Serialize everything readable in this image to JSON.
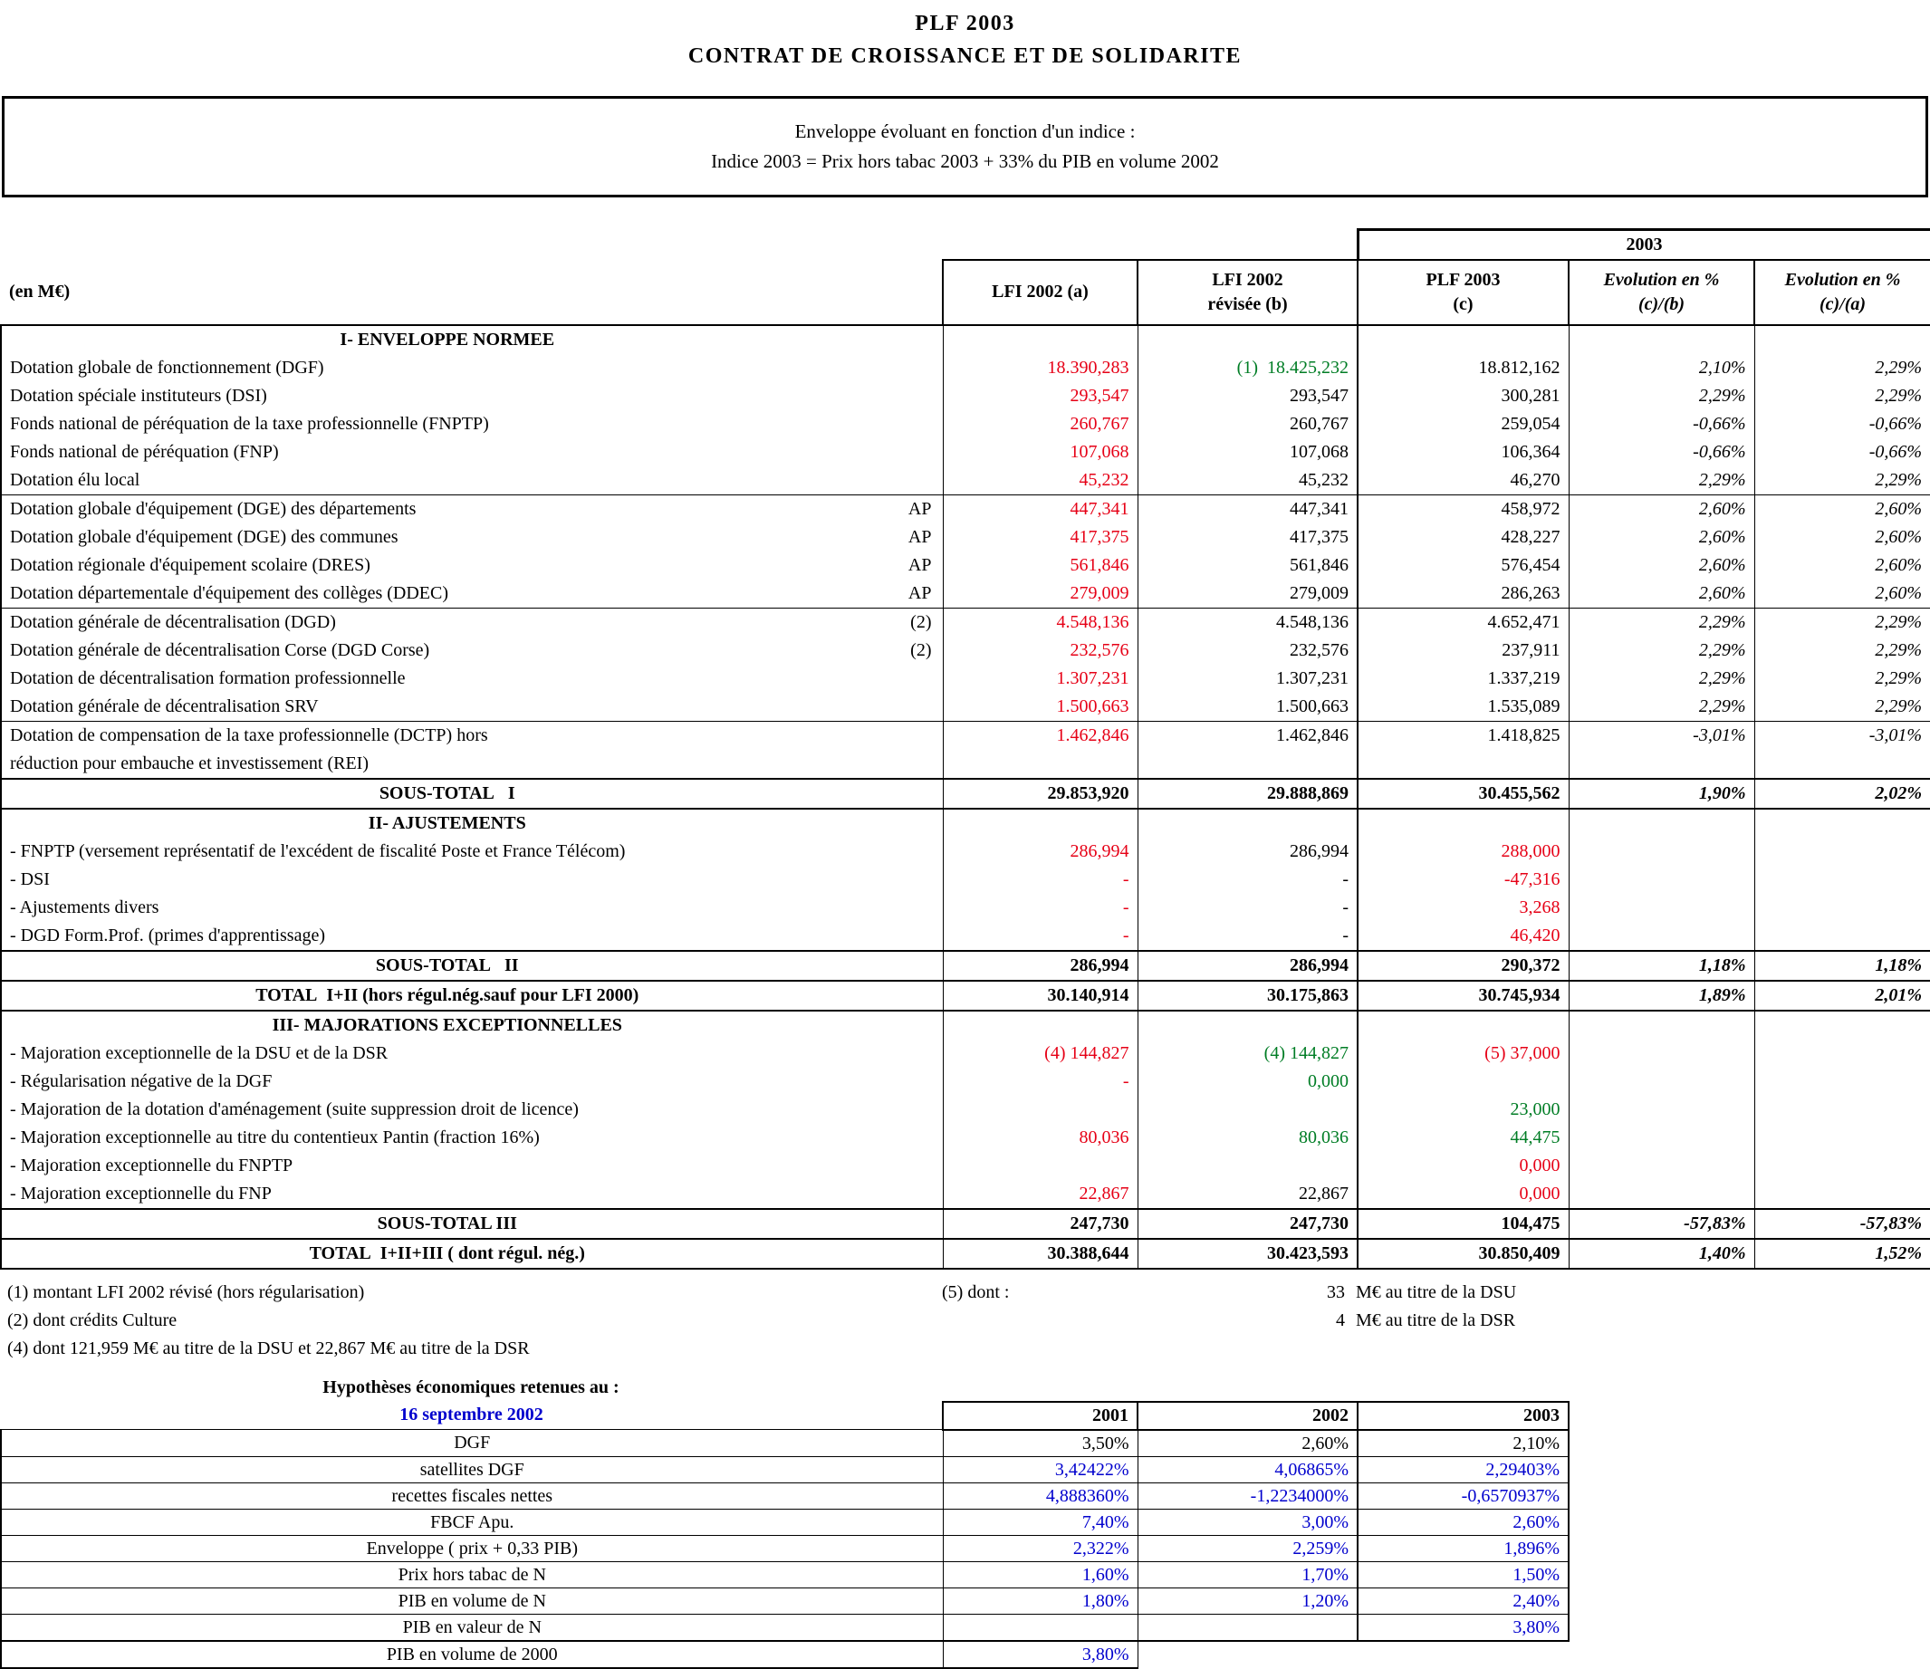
{
  "title": {
    "line1": "PLF 2003",
    "line2": "CONTRAT DE CROISSANCE ET DE SOLIDARITE"
  },
  "notice": {
    "line1": "Enveloppe évoluant en fonction d'un indice :",
    "line2": "Indice 2003 = Prix hors tabac 2003 + 33% du PIB en volume 2002"
  },
  "main_table": {
    "year_span_header": "2003",
    "unit_label": "(en M€)",
    "col_headers": [
      {
        "l1": "LFI 2002 (a)",
        "l2": ""
      },
      {
        "l1": "LFI 2002",
        "l2": "révisée (b)"
      },
      {
        "l1": "PLF 2003",
        "l2": "(c)"
      },
      {
        "l1": "Evolution en %",
        "l2": "(c)/(b)"
      },
      {
        "l1": "Evolution en %",
        "l2": "(c)/(a)"
      }
    ],
    "rows": [
      {
        "t": "sec",
        "label": "I- ENVELOPPE NORMEE"
      },
      {
        "t": "d",
        "label": "Dotation globale de fonctionnement (DGF)",
        "a": "18.390,283",
        "ac": "red",
        "b": "(1)  18.425,232",
        "bc": "green",
        "c": "18.812,162",
        "cb": "2,10%",
        "ca": "2,29%"
      },
      {
        "t": "d",
        "label": "Dotation spéciale instituteurs (DSI)",
        "a": "293,547",
        "ac": "red",
        "b": "293,547",
        "c": "300,281",
        "cb": "2,29%",
        "ca": "2,29%"
      },
      {
        "t": "d",
        "label": "Fonds national de péréquation de la taxe professionnelle (FNPTP)",
        "a": "260,767",
        "ac": "red",
        "b": "260,767",
        "c": "259,054",
        "cb": "-0,66%",
        "ca": "-0,66%"
      },
      {
        "t": "d",
        "label": "Fonds national de péréquation (FNP)",
        "a": "107,068",
        "ac": "red",
        "b": "107,068",
        "c": "106,364",
        "cb": "-0,66%",
        "ca": "-0,66%"
      },
      {
        "t": "d",
        "label": "Dotation élu local",
        "a": "45,232",
        "ac": "red",
        "b": "45,232",
        "c": "46,270",
        "cb": "2,29%",
        "ca": "2,29%"
      },
      {
        "t": "d",
        "bt": 1,
        "label": "Dotation globale d'équipement (DGE) des départements",
        "m": "AP",
        "a": "447,341",
        "ac": "red",
        "b": "447,341",
        "c": "458,972",
        "cb": "2,60%",
        "ca": "2,60%"
      },
      {
        "t": "d",
        "label": "Dotation globale d'équipement (DGE) des communes",
        "m": "AP",
        "a": "417,375",
        "ac": "red",
        "b": "417,375",
        "c": "428,227",
        "cb": "2,60%",
        "ca": "2,60%"
      },
      {
        "t": "d",
        "label": "Dotation régionale d'équipement scolaire (DRES)",
        "m": "AP",
        "a": "561,846",
        "ac": "red",
        "b": "561,846",
        "c": "576,454",
        "cb": "2,60%",
        "ca": "2,60%"
      },
      {
        "t": "d",
        "label": "Dotation départementale d'équipement des collèges (DDEC)",
        "m": "AP",
        "a": "279,009",
        "ac": "red",
        "b": "279,009",
        "c": "286,263",
        "cb": "2,60%",
        "ca": "2,60%"
      },
      {
        "t": "d",
        "bt": 1,
        "label": "Dotation générale de décentralisation (DGD)",
        "m": "(2)",
        "a": "4.548,136",
        "ac": "red",
        "b": "4.548,136",
        "c": "4.652,471",
        "cb": "2,29%",
        "ca": "2,29%"
      },
      {
        "t": "d",
        "label": "Dotation générale de décentralisation Corse (DGD Corse)",
        "m": "(2)",
        "a": "232,576",
        "ac": "red",
        "b": "232,576",
        "c": "237,911",
        "cb": "2,29%",
        "ca": "2,29%"
      },
      {
        "t": "d",
        "label": "Dotation de décentralisation formation professionnelle",
        "a": "1.307,231",
        "ac": "red",
        "b": "1.307,231",
        "c": "1.337,219",
        "cb": "2,29%",
        "ca": "2,29%"
      },
      {
        "t": "d",
        "label": "Dotation générale de décentralisation SRV",
        "a": "1.500,663",
        "ac": "red",
        "b": "1.500,663",
        "c": "1.535,089",
        "cb": "2,29%",
        "ca": "2,29%"
      },
      {
        "t": "d",
        "bt": 1,
        "label": "Dotation de compensation de la taxe professionnelle (DCTP) hors",
        "label2": "réduction pour embauche et investissement (REI)",
        "a": "1.462,846",
        "ac": "red",
        "b": "1.462,846",
        "c": "1.418,825",
        "cb": "-3,01%",
        "ca": "-3,01%"
      },
      {
        "t": "st",
        "label": "SOUS-TOTAL   I",
        "a": "29.853,920",
        "b": "29.888,869",
        "c": "30.455,562",
        "cb": "1,90%",
        "ca": "2,02%"
      },
      {
        "t": "sec",
        "label": "II- AJUSTEMENTS"
      },
      {
        "t": "d",
        "label": "- FNPTP (versement représentatif de l'excédent de fiscalité Poste et France Télécom)",
        "a": "286,994",
        "ac": "red",
        "b": "286,994",
        "c": "288,000",
        "cc": "red"
      },
      {
        "t": "d",
        "label": "- DSI",
        "a": "-",
        "ac": "red",
        "b": "-",
        "c": "-47,316",
        "cc": "red"
      },
      {
        "t": "d",
        "label": "- Ajustements divers",
        "a": "-",
        "ac": "red",
        "b": "-",
        "c": "3,268",
        "cc": "red"
      },
      {
        "t": "d",
        "label": "- DGD Form.Prof. (primes d'apprentissage)",
        "a": "-",
        "ac": "red",
        "b": "-",
        "c": "46,420",
        "cc": "red"
      },
      {
        "t": "st",
        "label": "SOUS-TOTAL   II",
        "a": "286,994",
        "b": "286,994",
        "c": "290,372",
        "cb": "1,18%",
        "ca": "1,18%"
      },
      {
        "t": "st",
        "label": "TOTAL  I+II (hors régul.nég.sauf pour LFI 2000)",
        "a": "30.140,914",
        "b": "30.175,863",
        "c": "30.745,934",
        "cb": "1,89%",
        "ca": "2,01%"
      },
      {
        "t": "sec",
        "label": "III- MAJORATIONS EXCEPTIONNELLES"
      },
      {
        "t": "d",
        "label": "- Majoration exceptionnelle de la DSU et de la DSR",
        "a": "(4) 144,827",
        "ac": "red",
        "b": "(4) 144,827",
        "bc": "green",
        "c": "(5) 37,000",
        "cc": "red"
      },
      {
        "t": "d",
        "label": "- Régularisation négative de la DGF",
        "a": "-",
        "ac": "red",
        "b": "0,000",
        "bc": "green"
      },
      {
        "t": "d",
        "label": "- Majoration de la dotation d'aménagement (suite suppression droit de licence)",
        "c": "23,000",
        "cc": "green"
      },
      {
        "t": "d",
        "label": "- Majoration exceptionnelle au titre du contentieux Pantin (fraction 16%)",
        "a": "80,036",
        "ac": "red",
        "b": "80,036",
        "bc": "green",
        "c": "44,475",
        "cc": "green"
      },
      {
        "t": "d",
        "label": "- Majoration exceptionnelle du FNPTP",
        "c": "0,000",
        "cc": "red"
      },
      {
        "t": "d",
        "label": "- Majoration exceptionnelle du FNP",
        "a": "22,867",
        "ac": "red",
        "b": "22,867",
        "c": "0,000",
        "cc": "red"
      },
      {
        "t": "st",
        "label": "SOUS-TOTAL III",
        "a": "247,730",
        "b": "247,730",
        "c": "104,475",
        "cb": "-57,83%",
        "ca": "-57,83%"
      },
      {
        "t": "st",
        "label": "TOTAL  I+II+III ( dont régul. nég.)",
        "a": "30.388,644",
        "b": "30.423,593",
        "c": "30.850,409",
        "cb": "1,40%",
        "ca": "1,52%"
      }
    ]
  },
  "footnotes": {
    "f1": "(1) montant LFI 2002 révisé (hors régularisation)",
    "f2": "(2) dont crédits Culture",
    "f4": "(4) dont 121,959 M€ au titre de la DSU et 22,867 M€ au titre de la DSR",
    "f5_label": "(5) dont :",
    "f5_dsu_value": "33",
    "f5_dsu_text": "M€ au titre de la DSU",
    "f5_dsr_value": "4",
    "f5_dsr_text": "M€ au titre de la DSR"
  },
  "hypotheses": {
    "title": "Hypothèses économiques retenues au :",
    "date": "16 septembre 2002",
    "col_headers": [
      "2001",
      "2002",
      "2003"
    ],
    "rows": [
      {
        "label": "DGF",
        "v": [
          "3,50%",
          "2,60%",
          "2,10%"
        ],
        "color": "black"
      },
      {
        "label": "satellites DGF",
        "v": [
          "3,42422%",
          "4,06865%",
          "2,29403%"
        ],
        "color": "blue"
      },
      {
        "label": "recettes fiscales nettes",
        "v": [
          "4,888360%",
          "-1,2234000%",
          "-0,6570937%"
        ],
        "color": "blue"
      },
      {
        "label": "FBCF Apu.",
        "v": [
          "7,40%",
          "3,00%",
          "2,60%"
        ],
        "color": "blue"
      },
      {
        "label": "Enveloppe ( prix + 0,33 PIB)",
        "v": [
          "2,322%",
          "2,259%",
          "1,896%"
        ],
        "color": "blue"
      },
      {
        "label": "Prix hors tabac de N",
        "v": [
          "1,60%",
          "1,70%",
          "1,50%"
        ],
        "color": "blue"
      },
      {
        "label": "PIB en volume de N",
        "v": [
          "1,80%",
          "1,20%",
          "2,40%"
        ],
        "color": "blue"
      },
      {
        "label": "PIB en valeur de N",
        "v": [
          "",
          "",
          "3,80%"
        ],
        "color": "blue"
      }
    ],
    "last_row": {
      "label": "PIB en volume de 2000",
      "value": "3,80%",
      "color": "blue"
    }
  }
}
